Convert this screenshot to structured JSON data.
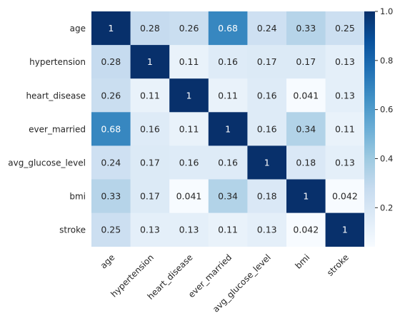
{
  "chart_data": {
    "type": "heatmap",
    "title": "",
    "xlabel": "",
    "ylabel": "",
    "rows": [
      "age",
      "hypertension",
      "heart_disease",
      "ever_married",
      "avg_glucose_level",
      "bmi",
      "stroke"
    ],
    "columns": [
      "age",
      "hypertension",
      "heart_disease",
      "ever_married",
      "avg_glucose_level",
      "bmi",
      "stroke"
    ],
    "values": [
      [
        1,
        0.28,
        0.26,
        0.68,
        0.24,
        0.33,
        0.25
      ],
      [
        0.28,
        1,
        0.11,
        0.16,
        0.17,
        0.17,
        0.13
      ],
      [
        0.26,
        0.11,
        1,
        0.11,
        0.16,
        0.041,
        0.13
      ],
      [
        0.68,
        0.16,
        0.11,
        1,
        0.16,
        0.34,
        0.11
      ],
      [
        0.24,
        0.17,
        0.16,
        0.16,
        1,
        0.18,
        0.13
      ],
      [
        0.33,
        0.17,
        0.041,
        0.34,
        0.18,
        1,
        0.042
      ],
      [
        0.25,
        0.13,
        0.13,
        0.11,
        0.13,
        0.042,
        1
      ]
    ],
    "colormap": "Blues",
    "vmin": 0.041,
    "vmax": 1.0,
    "colorbar_ticks": [
      0.2,
      0.4,
      0.6,
      0.8,
      1.0
    ],
    "colorbar_tick_labels": [
      "0.2",
      "0.4",
      "0.6",
      "0.8",
      "1.0"
    ],
    "annotations": true,
    "x_tick_rotation_deg": 45,
    "colors": {
      "low": "#f7fbff",
      "high": "#08306b",
      "text_dark": "#262626",
      "text_light": "#ffffff"
    }
  }
}
